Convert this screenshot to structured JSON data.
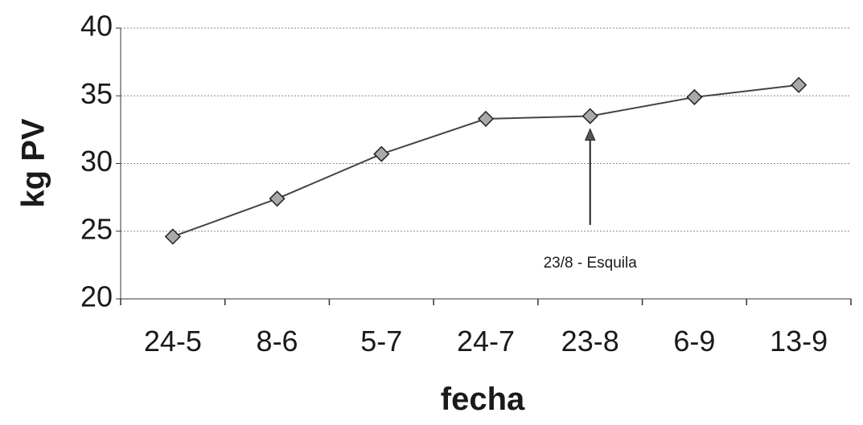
{
  "chart_data": {
    "type": "line",
    "categories": [
      "24-5",
      "8-6",
      "5-7",
      "24-7",
      "23-8",
      "6-9",
      "13-9"
    ],
    "series": [
      {
        "values": [
          24.6,
          27.4,
          30.7,
          33.3,
          33.5,
          34.9,
          35.8
        ]
      }
    ],
    "xlabel": "fecha",
    "ylabel": "kg PV",
    "ylim": [
      20,
      40
    ],
    "yticks": [
      20,
      25,
      30,
      35,
      40
    ],
    "grid": "horizontal",
    "legend": "none",
    "annotation": {
      "text": "23/8 - Esquila",
      "category": "23-8"
    },
    "colors": {
      "line": "#444444",
      "marker_fill": "#a9a9a9",
      "marker_stroke": "#222222",
      "grid": "#888888",
      "axis": "#333333"
    }
  }
}
